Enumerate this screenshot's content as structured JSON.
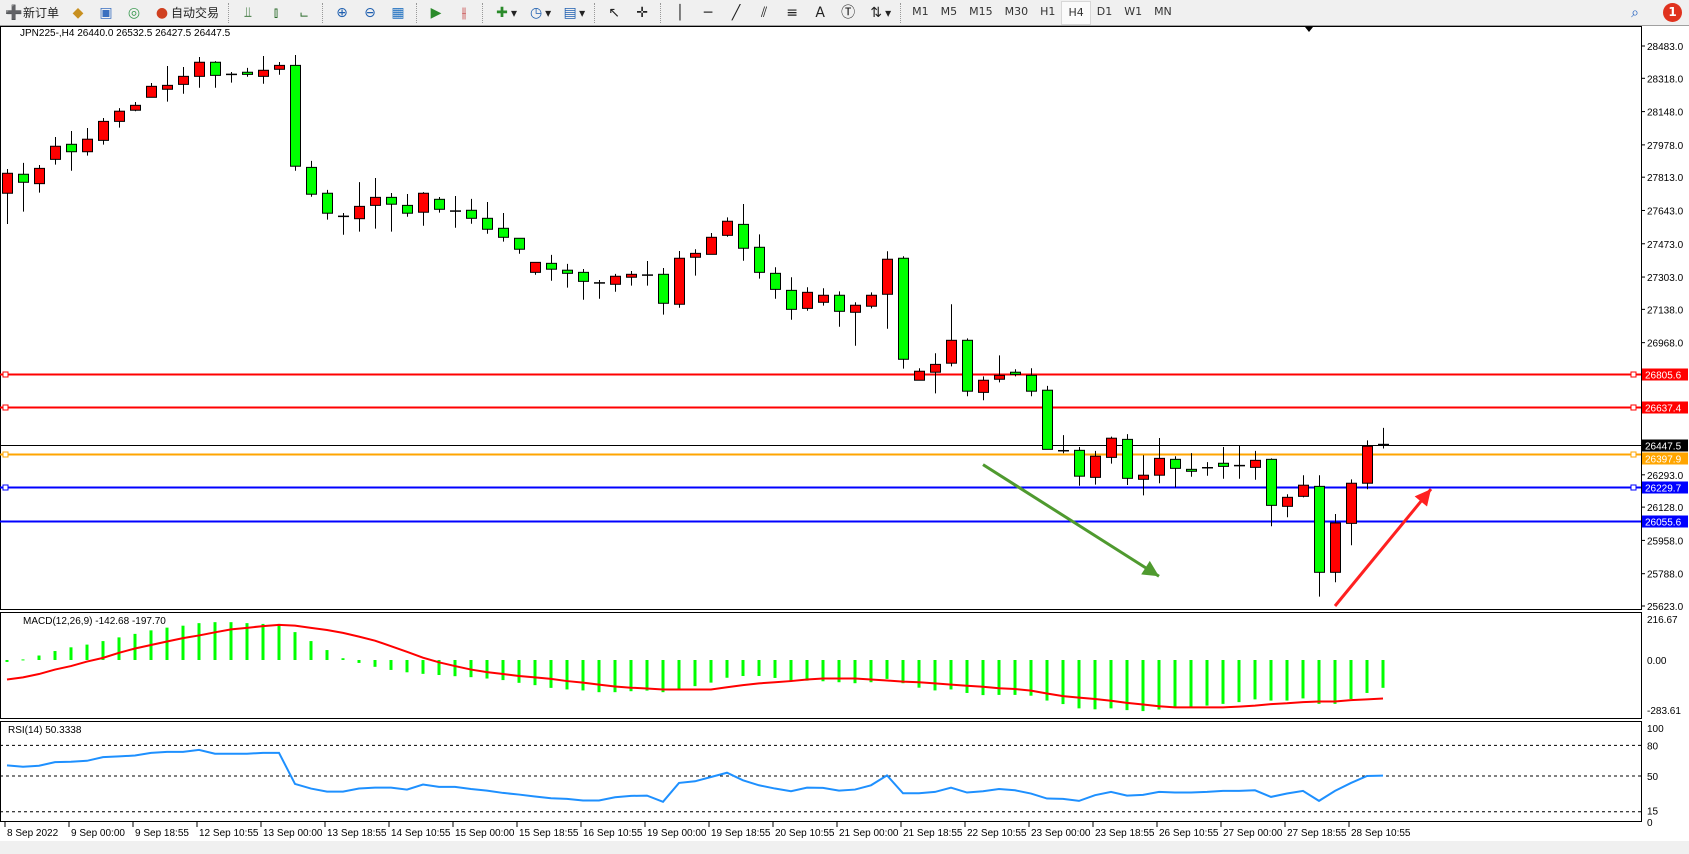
{
  "toolbar": {
    "new_order_label": "新订单",
    "auto_trading_label": "自动交易",
    "icons": [
      "new-order-icon",
      "market-watch-icon",
      "navigator-icon",
      "signals-icon",
      "auto-trading-icon",
      "bar-chart-icon",
      "candlestick-chart-icon",
      "line-chart-icon",
      "zoom-in-icon",
      "zoom-out-icon",
      "tile-windows-icon",
      "auto-scroll-icon",
      "chart-shift-icon",
      "indicators-icon",
      "periods-icon",
      "templates-icon",
      "cursor-icon",
      "crosshair-icon",
      "vertical-line-icon",
      "horizontal-line-icon",
      "trendline-icon",
      "equidistant-channel-icon",
      "fibonacci-icon",
      "text-icon",
      "text-label-icon",
      "arrows-icon",
      "search-icon",
      "chat-icon"
    ],
    "timeframes": [
      "M1",
      "M5",
      "M15",
      "M30",
      "H1",
      "H4",
      "D1",
      "W1",
      "MN"
    ],
    "active_timeframe": "H4",
    "notification_count": "1"
  },
  "chart": {
    "header": "JPN225-,H4  26440.0 26532.5 26427.5 26447.5",
    "colors": {
      "bull": "#ff0000",
      "bear": "#00ff00",
      "macd_hist": "#00ff00",
      "signal": "#ff0000",
      "rsi": "#1e90ff"
    },
    "price_ticks": [
      "28483.0",
      "28318.0",
      "28148.0",
      "27978.0",
      "27813.0",
      "27643.0",
      "27473.0",
      "27303.0",
      "27138.0",
      "26968.0",
      "26293.0",
      "26128.0",
      "25958.0",
      "25788.0",
      "25623.0"
    ],
    "levels": [
      {
        "price": 26805.6,
        "label": "26805.6",
        "color": "#ff0000"
      },
      {
        "price": 26637.4,
        "label": "26637.4",
        "color": "#ff0000"
      },
      {
        "price": 26447.5,
        "label": "26447.5",
        "color": "#000000"
      },
      {
        "price": 26397.9,
        "label": "26397.9",
        "color": "#ffa500"
      },
      {
        "price": 26229.7,
        "label": "26229.7",
        "color": "#0000ff"
      },
      {
        "price": 26055.6,
        "label": "26055.6",
        "color": "#0000ff"
      }
    ],
    "arrows": [
      {
        "color": "#4f9a2f",
        "from": [
          61,
          26345
        ],
        "to": [
          72,
          25775
        ]
      },
      {
        "color": "#ff2020",
        "from": [
          83,
          25623
        ],
        "to": [
          89,
          26220
        ]
      }
    ],
    "time_labels": [
      "8 Sep 2022",
      "9 Sep 00:00",
      "9 Sep 18:55",
      "12 Sep 10:55",
      "13 Sep 00:00",
      "13 Sep 18:55",
      "14 Sep 10:55",
      "15 Sep 00:00",
      "15 Sep 18:55",
      "16 Sep 10:55",
      "19 Sep 00:00",
      "19 Sep 18:55",
      "20 Sep 10:55",
      "21 Sep 00:00",
      "21 Sep 18:55",
      "22 Sep 10:55",
      "23 Sep 00:00",
      "23 Sep 18:55",
      "26 Sep 10:55",
      "27 Sep 00:00",
      "27 Sep 18:55",
      "28 Sep 10:55"
    ]
  },
  "macd": {
    "label": "MACD(12,26,9) -142.68 -197.70",
    "ticks": [
      "216.67",
      "0.00",
      "-283.61"
    ]
  },
  "rsi": {
    "label": "RSI(14) 50.3338",
    "ticks": [
      "100",
      "80",
      "50",
      "15",
      "0"
    ]
  },
  "chart_data": {
    "type": "candlestick",
    "ohlc": [
      [
        27731,
        27855,
        27574,
        27833
      ],
      [
        27828,
        27886,
        27637,
        27787
      ],
      [
        27780,
        27875,
        27734,
        27858
      ],
      [
        27904,
        28018,
        27877,
        27971
      ],
      [
        27981,
        28049,
        27846,
        27943
      ],
      [
        27943,
        28064,
        27923,
        28007
      ],
      [
        28001,
        28115,
        27979,
        28098
      ],
      [
        28098,
        28166,
        28066,
        28150
      ],
      [
        28155,
        28197,
        28150,
        28180
      ],
      [
        28221,
        28294,
        28221,
        28277
      ],
      [
        28262,
        28381,
        28199,
        28282
      ],
      [
        28287,
        28376,
        28239,
        28328
      ],
      [
        28328,
        28427,
        28270,
        28400
      ],
      [
        28400,
        28406,
        28270,
        28333
      ],
      [
        28338,
        28350,
        28296,
        28338
      ],
      [
        28349,
        28371,
        28326,
        28338
      ],
      [
        28328,
        28432,
        28290,
        28359
      ],
      [
        28364,
        28401,
        28336,
        28384
      ],
      [
        28384,
        28437,
        27846,
        27869
      ],
      [
        27863,
        27896,
        27713,
        27726
      ],
      [
        27731,
        27748,
        27596,
        27629
      ],
      [
        27613,
        27630,
        27519,
        27613
      ],
      [
        27601,
        27788,
        27535,
        27664
      ],
      [
        27669,
        27809,
        27550,
        27710
      ],
      [
        27710,
        27732,
        27535,
        27675
      ],
      [
        27669,
        27727,
        27611,
        27629
      ],
      [
        27634,
        27737,
        27565,
        27731
      ],
      [
        27700,
        27712,
        27632,
        27649
      ],
      [
        27640,
        27717,
        27555,
        27640
      ],
      [
        27644,
        27702,
        27575,
        27603
      ],
      [
        27603,
        27686,
        27524,
        27547
      ],
      [
        27552,
        27630,
        27484,
        27506
      ],
      [
        27501,
        27501,
        27422,
        27445
      ],
      [
        27327,
        27378,
        27315,
        27378
      ],
      [
        27373,
        27416,
        27284,
        27343
      ],
      [
        27338,
        27370,
        27249,
        27322
      ],
      [
        27327,
        27344,
        27187,
        27281
      ],
      [
        27273,
        27288,
        27192,
        27273
      ],
      [
        27266,
        27319,
        27228,
        27307
      ],
      [
        27302,
        27334,
        27259,
        27317
      ],
      [
        27313,
        27385,
        27259,
        27313
      ],
      [
        27317,
        27349,
        27111,
        27169
      ],
      [
        27164,
        27436,
        27146,
        27399
      ],
      [
        27404,
        27445,
        27310,
        27424
      ],
      [
        27419,
        27528,
        27419,
        27506
      ],
      [
        27516,
        27608,
        27509,
        27588
      ],
      [
        27572,
        27676,
        27386,
        27450
      ],
      [
        27455,
        27521,
        27295,
        27327
      ],
      [
        27322,
        27353,
        27192,
        27240
      ],
      [
        27235,
        27302,
        27085,
        27138
      ],
      [
        27143,
        27251,
        27131,
        27225
      ],
      [
        27174,
        27246,
        27157,
        27210
      ],
      [
        27210,
        27230,
        27049,
        27128
      ],
      [
        27123,
        27174,
        26952,
        27159
      ],
      [
        27154,
        27225,
        27143,
        27210
      ],
      [
        27215,
        27435,
        27039,
        27394
      ],
      [
        27399,
        27409,
        26835,
        26883
      ],
      [
        26776,
        26837,
        26776,
        26822
      ],
      [
        26817,
        26914,
        26709,
        26857
      ],
      [
        26863,
        27164,
        26847,
        26980
      ],
      [
        26980,
        26990,
        26694,
        26720
      ],
      [
        26714,
        26796,
        26674,
        26776
      ],
      [
        26781,
        26903,
        26765,
        26801
      ],
      [
        26817,
        26832,
        26796,
        26806
      ],
      [
        26801,
        26837,
        26694,
        26720
      ],
      [
        26725,
        26747,
        26423,
        26423
      ],
      [
        26416,
        26496,
        26403,
        26416
      ],
      [
        26418,
        26435,
        26237,
        26286
      ],
      [
        26280,
        26415,
        26243,
        26388
      ],
      [
        26382,
        26488,
        26350,
        26480
      ],
      [
        26474,
        26501,
        26241,
        26275
      ],
      [
        26270,
        26393,
        26188,
        26291
      ],
      [
        26291,
        26481,
        26250,
        26377
      ],
      [
        26372,
        26388,
        26229,
        26326
      ],
      [
        26321,
        26404,
        26283,
        26311
      ],
      [
        26329,
        26358,
        26288,
        26329
      ],
      [
        26352,
        26435,
        26273,
        26336
      ],
      [
        26340,
        26442,
        26273,
        26340
      ],
      [
        26331,
        26415,
        26268,
        26367
      ],
      [
        26372,
        26377,
        26030,
        26137
      ],
      [
        26132,
        26194,
        26076,
        26178
      ],
      [
        26183,
        26291,
        26178,
        26240
      ],
      [
        26234,
        26291,
        25671,
        25795
      ],
      [
        25795,
        26093,
        25744,
        26047
      ],
      [
        26045,
        26270,
        25933,
        26250
      ],
      [
        26250,
        26469,
        26219,
        26439
      ],
      [
        26440,
        26532.5,
        26427.5,
        26447.5
      ]
    ],
    "macd_main": [
      -10,
      3,
      23,
      46,
      65,
      79,
      97,
      116,
      134,
      152,
      166,
      176,
      189,
      194,
      194,
      189,
      185,
      185,
      143,
      97,
      51,
      9,
      -15,
      -35,
      -51,
      -63,
      -71,
      -77,
      -83,
      -88,
      -95,
      -103,
      -117,
      -129,
      -143,
      -151,
      -156,
      -165,
      -165,
      -160,
      -157,
      -165,
      -148,
      -134,
      -116,
      -91,
      -82,
      -82,
      -92,
      -106,
      -106,
      -109,
      -114,
      -119,
      -114,
      -97,
      -119,
      -142,
      -156,
      -151,
      -169,
      -180,
      -179,
      -179,
      -183,
      -208,
      -226,
      -248,
      -253,
      -248,
      -257,
      -262,
      -254,
      -242,
      -242,
      -234,
      -225,
      -216,
      -202,
      -208,
      -208,
      -197,
      -225,
      -225,
      -200,
      -169,
      -142.68
    ],
    "macd_signal": [
      -100,
      -89,
      -72,
      -49,
      -31,
      -8,
      11,
      37,
      59,
      77,
      95,
      112,
      126,
      142,
      157,
      165,
      174,
      180,
      176,
      165,
      154,
      139,
      120,
      99,
      71,
      42,
      12,
      -12,
      -31,
      -49,
      -62,
      -72,
      -82,
      -89,
      -97,
      -108,
      -116,
      -126,
      -136,
      -142,
      -146,
      -151,
      -151,
      -151,
      -151,
      -140,
      -129,
      -120,
      -114,
      -108,
      -100,
      -95,
      -95,
      -95,
      -100,
      -105,
      -111,
      -114,
      -120,
      -126,
      -132,
      -137,
      -145,
      -149,
      -157,
      -172,
      -185,
      -193,
      -200,
      -209,
      -220,
      -228,
      -237,
      -243,
      -243,
      -243,
      -243,
      -239,
      -234,
      -226,
      -222,
      -216,
      -213,
      -213,
      -206,
      -202,
      -197.7
    ],
    "macd_range": [
      -283.61,
      216.67
    ],
    "rsi": [
      60.4,
      59.1,
      60.1,
      63.6,
      64.0,
      64.9,
      68.5,
      69.2,
      70.1,
      72.7,
      73.7,
      73.7,
      75.6,
      71.8,
      71.8,
      71.8,
      72.7,
      72.7,
      42.2,
      37.7,
      34.7,
      34.7,
      37.7,
      38.6,
      38.6,
      36.7,
      41.6,
      39.3,
      39.3,
      37.3,
      35.7,
      33.4,
      31.8,
      29.9,
      28.2,
      27.6,
      26.0,
      26.0,
      29.2,
      30.5,
      30.8,
      24.7,
      43.2,
      44.8,
      49.0,
      53.2,
      45.8,
      40.9,
      37.7,
      35.1,
      38.6,
      38.3,
      35.7,
      36.7,
      40.9,
      50.6,
      33.1,
      33.1,
      34.4,
      38.6,
      33.8,
      35.1,
      37.3,
      36.0,
      32.8,
      27.9,
      27.6,
      25.6,
      31.2,
      34.4,
      30.8,
      31.5,
      34.4,
      33.8,
      33.8,
      34.4,
      35.4,
      35.4,
      36.0,
      29.5,
      32.8,
      35.4,
      25.6,
      35.4,
      43.2,
      50.0,
      50.3338
    ],
    "rsi_levels": [
      80,
      50,
      15
    ],
    "price_range": [
      25623,
      28483
    ]
  }
}
